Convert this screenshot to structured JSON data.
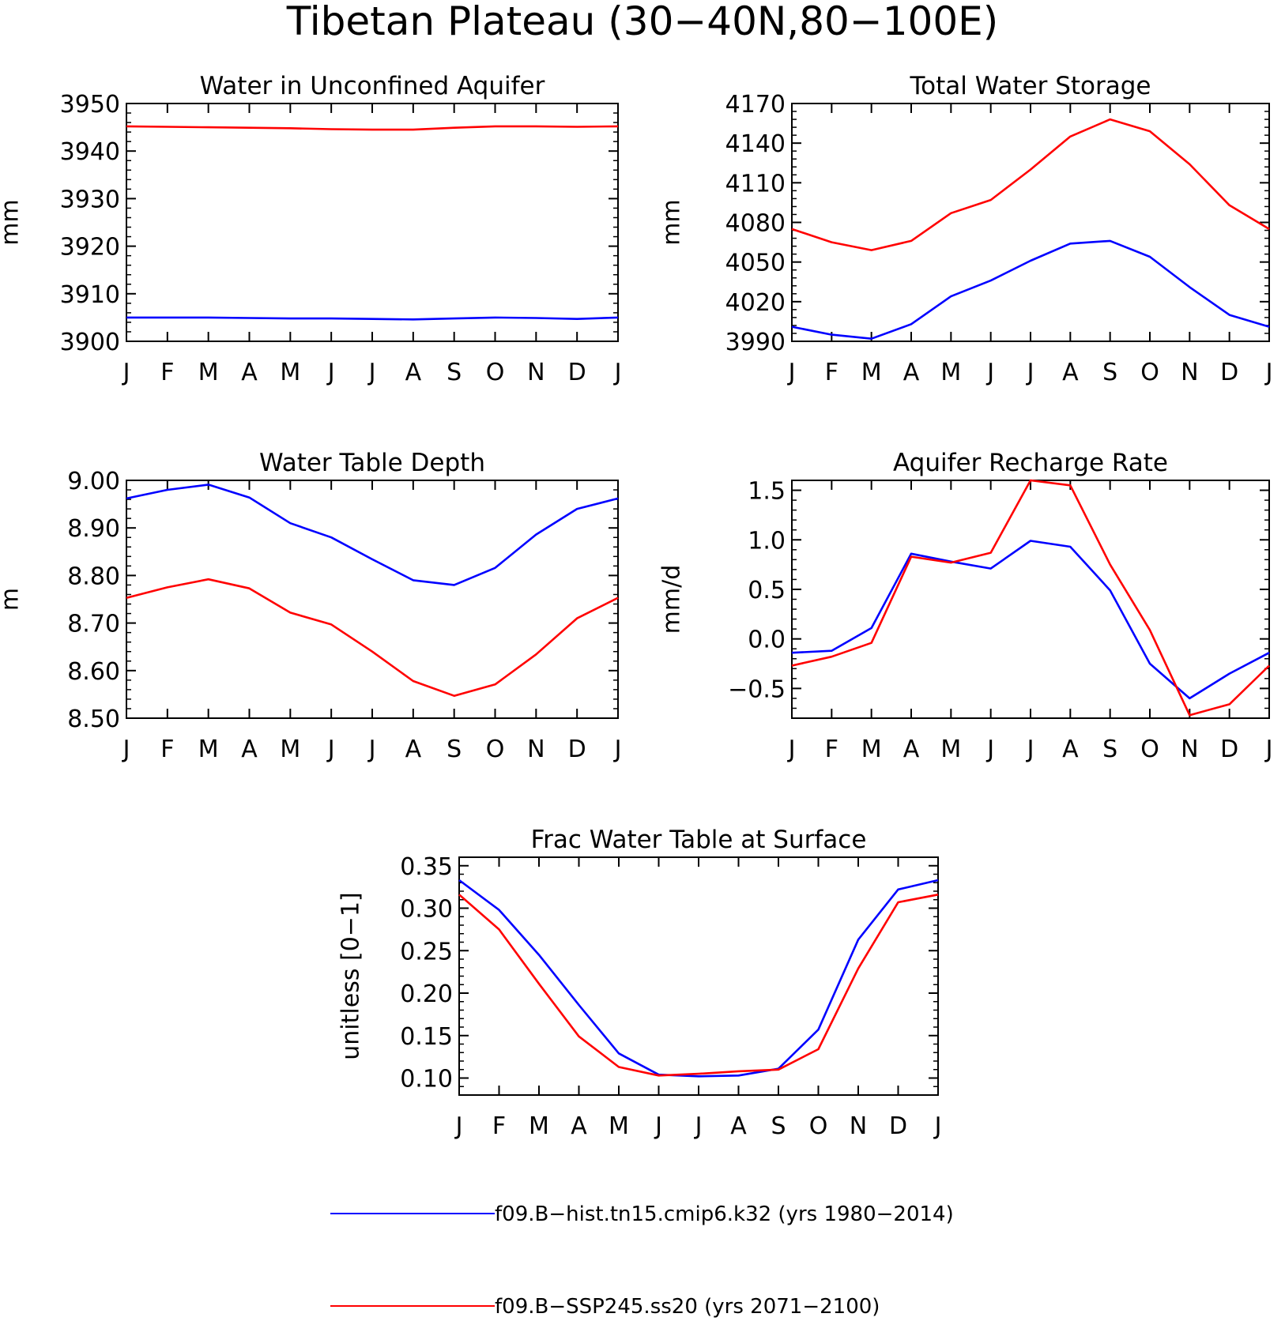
{
  "title": "Tibetan Plateau (30−40N,80−100E)",
  "colors": {
    "hist": "#0000ff",
    "ssp": "#ff0000",
    "axes": "#000000"
  },
  "legend": [
    {
      "series": "hist",
      "label": "f09.B−hist.tn15.cmip6.k32 (yrs 1980−2014)"
    },
    {
      "series": "ssp",
      "label": "f09.B−SSP245.ss20 (yrs 2071−2100)"
    }
  ],
  "chart_data": [
    {
      "type": "line",
      "title": "Water in Unconfined Aquifer",
      "ylabel": "mm",
      "xlabel": "",
      "categories": [
        "J",
        "F",
        "M",
        "A",
        "M",
        "J",
        "J",
        "A",
        "S",
        "O",
        "N",
        "D",
        "J"
      ],
      "ylim": [
        3900,
        3950
      ],
      "yticks": [
        3900,
        3910,
        3920,
        3930,
        3940,
        3950
      ],
      "yticklabels": [
        "3900",
        "3910",
        "3920",
        "3930",
        "3940",
        "3950"
      ],
      "series": [
        {
          "name": "f09.B−hist.tn15.cmip6.k32 (yrs 1980−2014)",
          "color": "#0000ff",
          "values": [
            3905.0,
            3905.0,
            3905.0,
            3904.9,
            3904.8,
            3904.8,
            3904.7,
            3904.6,
            3904.8,
            3905.0,
            3904.9,
            3904.7,
            3905.0
          ]
        },
        {
          "name": "f09.B−SSP245.ss20 (yrs 2071−2100)",
          "color": "#ff0000",
          "values": [
            3945.2,
            3945.1,
            3945.0,
            3944.9,
            3944.8,
            3944.6,
            3944.5,
            3944.5,
            3944.9,
            3945.2,
            3945.2,
            3945.1,
            3945.2
          ]
        }
      ]
    },
    {
      "type": "line",
      "title": "Total Water Storage",
      "ylabel": "mm",
      "xlabel": "",
      "categories": [
        "J",
        "F",
        "M",
        "A",
        "M",
        "J",
        "J",
        "A",
        "S",
        "O",
        "N",
        "D",
        "J"
      ],
      "ylim": [
        3990,
        4170
      ],
      "yticks": [
        3990,
        4020,
        4050,
        4080,
        4110,
        4140,
        4170
      ],
      "yticklabels": [
        "3990",
        "4020",
        "4050",
        "4080",
        "4110",
        "4140",
        "4170"
      ],
      "series": [
        {
          "name": "f09.B−hist.tn15.cmip6.k32 (yrs 1980−2014)",
          "color": "#0000ff",
          "values": [
            4001,
            3995,
            3992,
            4003,
            4024,
            4036,
            4051,
            4064,
            4066,
            4054,
            4031,
            4010,
            4001
          ]
        },
        {
          "name": "f09.B−SSP245.ss20 (yrs 2071−2100)",
          "color": "#ff0000",
          "values": [
            4075,
            4065,
            4059,
            4066,
            4087,
            4097,
            4120,
            4145,
            4158,
            4149,
            4124,
            4093,
            4075
          ]
        }
      ]
    },
    {
      "type": "line",
      "title": "Water Table Depth",
      "ylabel": "m",
      "xlabel": "",
      "categories": [
        "J",
        "F",
        "M",
        "A",
        "M",
        "J",
        "J",
        "A",
        "S",
        "O",
        "N",
        "D",
        "J"
      ],
      "ylim": [
        8.5,
        9.0
      ],
      "yticks": [
        8.5,
        8.6,
        8.7,
        8.8,
        8.9,
        9.0
      ],
      "yticklabels": [
        "8.50",
        "8.60",
        "8.70",
        "8.80",
        "8.90",
        "9.00"
      ],
      "series": [
        {
          "name": "f09.B−hist.tn15.cmip6.k32 (yrs 1980−2014)",
          "color": "#0000ff",
          "values": [
            8.962,
            8.98,
            8.991,
            8.964,
            8.91,
            8.88,
            8.834,
            8.79,
            8.78,
            8.816,
            8.886,
            8.94,
            8.962
          ]
        },
        {
          "name": "f09.B−SSP245.ss20 (yrs 2071−2100)",
          "color": "#ff0000",
          "values": [
            8.753,
            8.775,
            8.792,
            8.773,
            8.722,
            8.697,
            8.64,
            8.578,
            8.547,
            8.571,
            8.634,
            8.71,
            8.753
          ]
        }
      ]
    },
    {
      "type": "line",
      "title": "Aquifer Recharge Rate",
      "ylabel": "mm/d",
      "xlabel": "",
      "categories": [
        "J",
        "F",
        "M",
        "A",
        "M",
        "J",
        "J",
        "A",
        "S",
        "O",
        "N",
        "D",
        "J"
      ],
      "ylim": [
        -0.8,
        1.6
      ],
      "yticks": [
        -0.5,
        0.0,
        0.5,
        1.0,
        1.5
      ],
      "yticklabels": [
        "−0.5",
        "0.0",
        "0.5",
        "1.0",
        "1.5"
      ],
      "series": [
        {
          "name": "f09.B−hist.tn15.cmip6.k32 (yrs 1980−2014)",
          "color": "#0000ff",
          "values": [
            -0.14,
            -0.12,
            0.11,
            0.86,
            0.78,
            0.71,
            0.99,
            0.93,
            0.49,
            -0.25,
            -0.6,
            -0.35,
            -0.14
          ]
        },
        {
          "name": "f09.B−SSP245.ss20 (yrs 2071−2100)",
          "color": "#ff0000",
          "values": [
            -0.27,
            -0.18,
            -0.04,
            0.83,
            0.77,
            0.87,
            1.6,
            1.55,
            0.75,
            0.09,
            -0.77,
            -0.66,
            -0.27
          ]
        }
      ]
    },
    {
      "type": "line",
      "title": "Frac Water Table at Surface",
      "ylabel": "unitless [0−1]",
      "xlabel": "",
      "categories": [
        "J",
        "F",
        "M",
        "A",
        "M",
        "J",
        "J",
        "A",
        "S",
        "O",
        "N",
        "D",
        "J"
      ],
      "ylim": [
        0.08,
        0.36
      ],
      "yticks": [
        0.1,
        0.15,
        0.2,
        0.25,
        0.3,
        0.35
      ],
      "yticklabels": [
        "0.10",
        "0.15",
        "0.20",
        "0.25",
        "0.30",
        "0.35"
      ],
      "series": [
        {
          "name": "f09.B−hist.tn15.cmip6.k32 (yrs 1980−2014)",
          "color": "#0000ff",
          "values": [
            0.333,
            0.298,
            0.245,
            0.186,
            0.129,
            0.104,
            0.102,
            0.103,
            0.111,
            0.157,
            0.263,
            0.322,
            0.333
          ]
        },
        {
          "name": "f09.B−SSP245.ss20 (yrs 2071−2100)",
          "color": "#ff0000",
          "values": [
            0.316,
            0.275,
            0.211,
            0.149,
            0.113,
            0.103,
            0.105,
            0.108,
            0.11,
            0.134,
            0.229,
            0.307,
            0.316
          ]
        }
      ]
    }
  ]
}
